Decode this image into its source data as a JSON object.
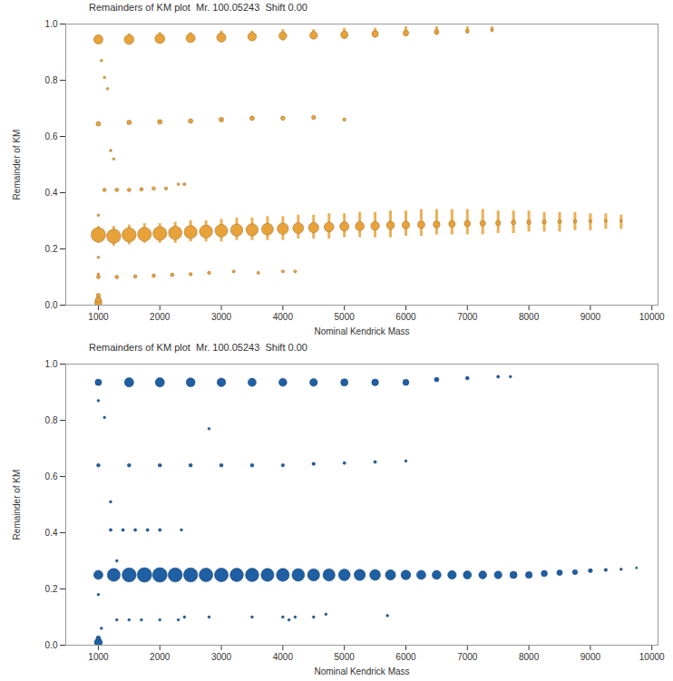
{
  "chart_data": [
    {
      "type": "scatter",
      "title": "Remainders of KM plot  Mr. 100.05243  Shift 0.00",
      "x_label": "Nominal Kendrick Mass",
      "y_label": "Remainder of KM",
      "color": "#e8a23a",
      "xlim": [
        470,
        10100
      ],
      "ylim": [
        0,
        1.0
      ],
      "xticks": [
        1000,
        2000,
        3000,
        4000,
        5000,
        6000,
        7000,
        8000,
        9000,
        10000
      ],
      "yticks": [
        {
          "value": 0,
          "label": "0.0"
        },
        0.2,
        0.4,
        0.6,
        0.8,
        {
          "value": 1.0,
          "label": "1.0"
        }
      ],
      "grid": false,
      "series": [
        {
          "x": [
            1000,
            1250,
            1500,
            1750,
            2000,
            2250,
            2500,
            2750,
            3000,
            3250,
            3500,
            3750,
            4000,
            4250,
            4500,
            4750,
            5000,
            5250,
            5500,
            5750,
            6000,
            6250,
            6500,
            6750,
            7000,
            7250,
            7500,
            7750,
            8000,
            8250,
            8500,
            8750,
            9000,
            9250,
            9500
          ],
          "y": [
            0.25,
            0.245,
            0.25,
            0.252,
            0.255,
            0.257,
            0.26,
            0.262,
            0.265,
            0.267,
            0.268,
            0.27,
            0.272,
            0.274,
            0.276,
            0.278,
            0.28,
            0.281,
            0.282,
            0.284,
            0.285,
            0.286,
            0.287,
            0.289,
            0.29,
            0.291,
            0.292,
            0.294,
            0.295,
            0.296,
            0.297,
            0.298,
            0.299,
            0.3,
            0.3
          ],
          "y_min": [
            0.22,
            0.21,
            0.215,
            0.22,
            0.22,
            0.22,
            0.225,
            0.225,
            0.225,
            0.23,
            0.23,
            0.23,
            0.23,
            0.235,
            0.235,
            0.235,
            0.24,
            0.24,
            0.24,
            0.24,
            0.245,
            0.245,
            0.25,
            0.25,
            0.25,
            0.25,
            0.255,
            0.255,
            0.26,
            0.26,
            0.26,
            0.265,
            0.265,
            0.27,
            0.27
          ],
          "y_max": [
            0.28,
            0.28,
            0.285,
            0.29,
            0.29,
            0.295,
            0.3,
            0.3,
            0.305,
            0.31,
            0.31,
            0.315,
            0.315,
            0.32,
            0.32,
            0.325,
            0.325,
            0.33,
            0.33,
            0.335,
            0.335,
            0.34,
            0.34,
            0.34,
            0.34,
            0.34,
            0.335,
            0.335,
            0.335,
            0.33,
            0.33,
            0.33,
            0.325,
            0.325,
            0.32
          ],
          "size": [
            100,
            95,
            95,
            90,
            90,
            85,
            80,
            80,
            75,
            70,
            70,
            65,
            60,
            55,
            50,
            45,
            40,
            38,
            35,
            30,
            28,
            25,
            22,
            20,
            18,
            15,
            12,
            10,
            9,
            8,
            7,
            6,
            5,
            4,
            3
          ]
        },
        {
          "x": [
            1000,
            1500,
            2000,
            2500,
            3000,
            3500,
            4000,
            4500,
            5000,
            5500,
            6000,
            6500,
            7000,
            7400
          ],
          "y": [
            0.945,
            0.945,
            0.948,
            0.95,
            0.952,
            0.955,
            0.958,
            0.96,
            0.962,
            0.965,
            0.968,
            0.972,
            0.975,
            0.98
          ],
          "y_min": [
            0.93,
            0.93,
            0.93,
            0.935,
            0.935,
            0.94,
            0.94,
            0.945,
            0.945,
            0.95,
            0.955,
            0.96,
            0.965,
            0.97
          ],
          "y_max": [
            0.96,
            0.965,
            0.97,
            0.97,
            0.975,
            0.975,
            0.98,
            0.98,
            0.985,
            0.985,
            0.99,
            0.99,
            0.99,
            0.99
          ],
          "size": [
            40,
            45,
            45,
            40,
            40,
            35,
            30,
            28,
            25,
            20,
            15,
            10,
            6,
            4
          ]
        },
        {
          "x": [
            1000,
            1500,
            2000,
            2500,
            3000,
            3500,
            4000,
            4500,
            5000
          ],
          "y": [
            0.645,
            0.65,
            0.652,
            0.655,
            0.66,
            0.665,
            0.665,
            0.668,
            0.66
          ],
          "size": [
            10,
            10,
            10,
            10,
            10,
            10,
            9,
            8,
            5
          ]
        },
        {
          "x": [
            1100,
            1300,
            1500,
            1700,
            1900,
            2100,
            2400
          ],
          "y": [
            0.41,
            0.41,
            0.41,
            0.412,
            0.415,
            0.415,
            0.43
          ],
          "size": [
            6,
            6,
            6,
            6,
            6,
            5,
            4
          ]
        },
        {
          "x": [
            1000,
            1300,
            1600,
            1900,
            2200,
            2500,
            2800,
            3200,
            3600,
            4000,
            4200
          ],
          "y": [
            0.1,
            0.1,
            0.102,
            0.105,
            0.108,
            0.11,
            0.115,
            0.12,
            0.115,
            0.12,
            0.12
          ],
          "size": [
            6,
            6,
            6,
            6,
            6,
            5,
            5,
            4,
            4,
            4,
            4
          ]
        },
        {
          "x": [
            1000,
            1000,
            1000,
            1000,
            1050,
            1100,
            1150,
            1200,
            1250,
            1000,
            1000,
            2300
          ],
          "y": [
            0.01,
            0.02,
            0.035,
            0.11,
            0.87,
            0.81,
            0.77,
            0.55,
            0.52,
            0.32,
            0.17,
            0.43
          ],
          "size": [
            25,
            15,
            8,
            3,
            3,
            3,
            3,
            3,
            3,
            3,
            3,
            3
          ]
        }
      ]
    },
    {
      "type": "scatter",
      "title": "Remainders of KM plot  Mr. 100.05243  Shift 0.00",
      "x_label": "Nominal Kendrick Mass",
      "y_label": "Remainder of KM",
      "color": "#1f5fa3",
      "xlim": [
        470,
        10100
      ],
      "ylim": [
        0,
        1.0
      ],
      "xticks": [
        1000,
        2000,
        3000,
        4000,
        5000,
        6000,
        7000,
        8000,
        9000,
        10000
      ],
      "yticks": [
        {
          "value": 0,
          "label": "0.0"
        },
        0.2,
        0.4,
        0.6,
        0.8,
        {
          "value": 1.0,
          "label": "1.0"
        }
      ],
      "grid": false,
      "series": [
        {
          "x": [
            1000,
            1250,
            1500,
            1750,
            2000,
            2250,
            2500,
            2750,
            3000,
            3250,
            3500,
            3750,
            4000,
            4250,
            4500,
            4750,
            5000,
            5250,
            5500,
            5750,
            6000,
            6250,
            6500,
            6750,
            7000,
            7250,
            7500,
            7750,
            8000,
            8250,
            8500,
            8750,
            9000,
            9250,
            9500,
            9750
          ],
          "y": [
            0.25,
            0.25,
            0.25,
            0.25,
            0.25,
            0.25,
            0.25,
            0.25,
            0.25,
            0.25,
            0.25,
            0.25,
            0.25,
            0.25,
            0.25,
            0.25,
            0.25,
            0.25,
            0.25,
            0.25,
            0.25,
            0.25,
            0.25,
            0.25,
            0.25,
            0.25,
            0.25,
            0.25,
            0.25,
            0.255,
            0.258,
            0.26,
            0.265,
            0.268,
            0.27,
            0.275
          ],
          "size": [
            40,
            80,
            95,
            100,
            100,
            95,
            95,
            90,
            90,
            85,
            85,
            80,
            80,
            75,
            70,
            70,
            65,
            60,
            55,
            50,
            45,
            40,
            38,
            35,
            32,
            30,
            28,
            25,
            22,
            18,
            15,
            12,
            8,
            5,
            3,
            2
          ]
        },
        {
          "x": [
            1000,
            1500,
            2000,
            2500,
            3000,
            3500,
            4000,
            4500,
            5000,
            5500,
            6000,
            6500,
            7000,
            7500,
            7700
          ],
          "y": [
            0.935,
            0.935,
            0.935,
            0.935,
            0.935,
            0.935,
            0.935,
            0.935,
            0.935,
            0.935,
            0.935,
            0.945,
            0.95,
            0.955,
            0.955
          ],
          "size": [
            20,
            40,
            40,
            38,
            35,
            32,
            30,
            28,
            25,
            22,
            18,
            10,
            6,
            4,
            3
          ]
        },
        {
          "x": [
            1000,
            1500,
            2000,
            2500,
            3000,
            3500,
            4000,
            4500,
            5000,
            5500,
            6000
          ],
          "y": [
            0.64,
            0.64,
            0.64,
            0.64,
            0.64,
            0.64,
            0.64,
            0.645,
            0.648,
            0.652,
            0.655
          ],
          "size": [
            6,
            6,
            6,
            6,
            6,
            6,
            5,
            5,
            4,
            4,
            3
          ]
        },
        {
          "x": [
            1200,
            1400,
            1600,
            1800,
            2000
          ],
          "y": [
            0.41,
            0.41,
            0.41,
            0.41,
            0.41
          ],
          "size": [
            4,
            4,
            4,
            4,
            4
          ]
        },
        {
          "x": [
            1300,
            1500,
            1700,
            2000,
            2300,
            2400,
            2800,
            3500,
            4000,
            4100,
            4200,
            4500,
            4700,
            5700
          ],
          "y": [
            0.09,
            0.09,
            0.09,
            0.09,
            0.09,
            0.1,
            0.1,
            0.1,
            0.1,
            0.09,
            0.1,
            0.1,
            0.11,
            0.105
          ],
          "size": [
            3,
            3,
            3,
            3,
            3,
            3,
            3,
            3,
            3,
            3,
            3,
            3,
            3,
            3
          ]
        },
        {
          "x": [
            1000,
            1000,
            1050,
            1000,
            1100,
            1200,
            1300,
            2350,
            2800,
            1000
          ],
          "y": [
            0.01,
            0.025,
            0.06,
            0.87,
            0.81,
            0.51,
            0.3,
            0.41,
            0.77,
            0.18
          ],
          "size": [
            30,
            10,
            3,
            3,
            3,
            3,
            3,
            3,
            3,
            3
          ]
        }
      ]
    }
  ]
}
